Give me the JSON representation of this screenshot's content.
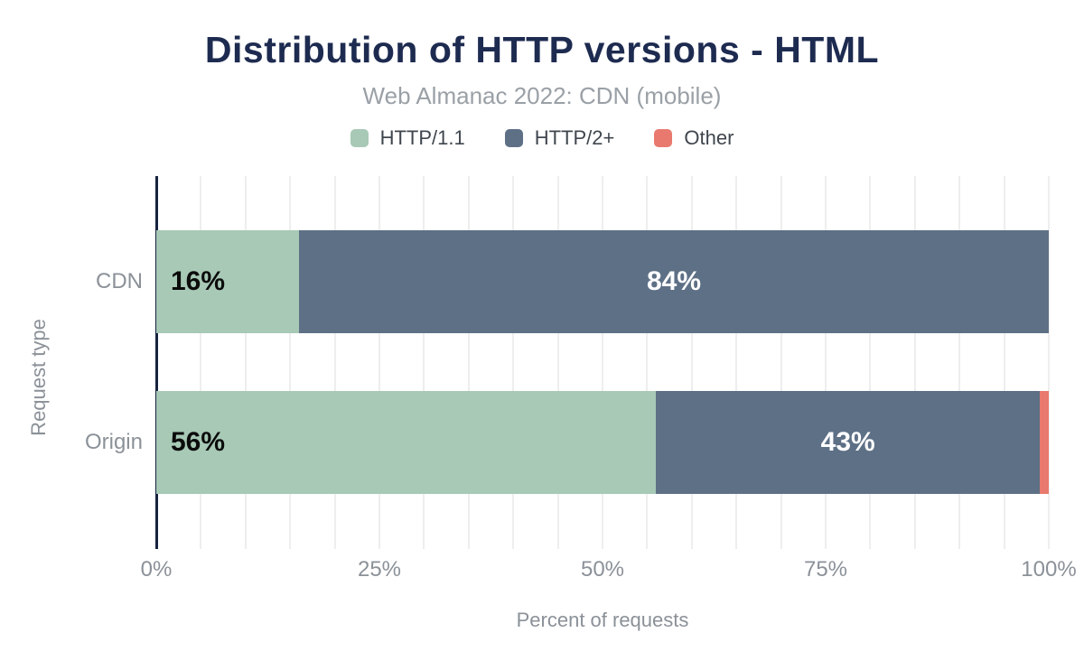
{
  "chart_data": {
    "type": "bar",
    "orientation": "horizontal",
    "stacked": true,
    "title": "Distribution of HTTP versions - HTML",
    "subtitle": "Web Almanac 2022: CDN (mobile)",
    "xlabel": "Percent of requests",
    "ylabel": "Request type",
    "xlim": [
      0,
      100
    ],
    "grid": {
      "show": true,
      "minor_step_pct": 5
    },
    "legend_position": "top",
    "categories": [
      "CDN",
      "Origin"
    ],
    "series": [
      {
        "name": "HTTP/1.1",
        "color": "#a7c9b6",
        "values": [
          16,
          56
        ],
        "label_color": "#0b0b0b",
        "label_align": "left"
      },
      {
        "name": "HTTP/2+",
        "color": "#5e7086",
        "values": [
          84,
          43
        ],
        "label_color": "#ffffff",
        "label_align": "center"
      },
      {
        "name": "Other",
        "color": "#e9796e",
        "values": [
          0,
          1
        ],
        "label_color": "#ffffff",
        "label_align": "center"
      }
    ],
    "value_labels": [
      [
        "16%",
        "84%",
        ""
      ],
      [
        "56%",
        "43%",
        ""
      ]
    ],
    "x_ticks": [
      {
        "pct": 0,
        "label": "0%"
      },
      {
        "pct": 25,
        "label": "25%"
      },
      {
        "pct": 50,
        "label": "50%"
      },
      {
        "pct": 75,
        "label": "75%"
      },
      {
        "pct": 100,
        "label": "100%"
      }
    ]
  },
  "colors": {
    "title": "#1e2b50",
    "subtitle": "#9aa0a6",
    "legend_label": "#40464e",
    "axis_text": "#8b9198",
    "axis_line": "#16233f",
    "gridline": "#eeeeee",
    "background": "#ffffff"
  }
}
